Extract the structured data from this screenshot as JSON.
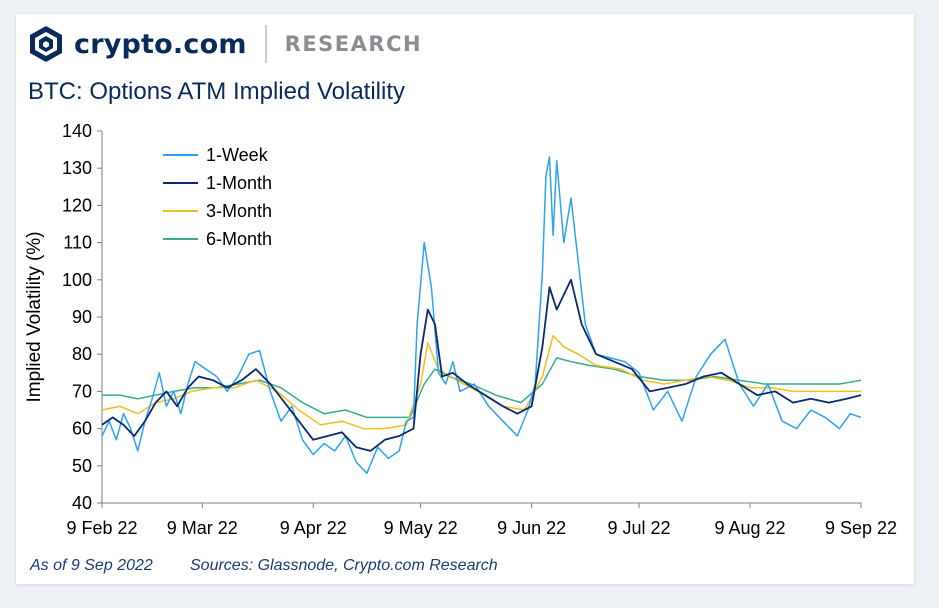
{
  "header": {
    "brand": "crypto.com",
    "section": "RESEARCH",
    "logo_icon": "crypto-com-lion-shield-icon"
  },
  "title": "BTC: Options ATM Implied Volatility",
  "footer": {
    "as_of": "As of 9 Sep 2022",
    "sources": "Sources: Glassnode, Crypto.com Research"
  },
  "colors": {
    "1-Week": "#2ea3f2",
    "1-Month": "#0b2a6e",
    "3-Month": "#f2c01d",
    "6-Month": "#3aab91"
  },
  "chart_data": {
    "type": "line",
    "title": "BTC: Options ATM Implied Volatility",
    "xlabel": "",
    "ylabel": "Implied Volatility (%)",
    "ylim": [
      40,
      140
    ],
    "yticks": [
      40,
      50,
      60,
      70,
      80,
      90,
      100,
      110,
      120,
      130,
      140
    ],
    "xticks": [
      "9 Feb 22",
      "9 Mar 22",
      "9 Apr 22",
      "9 May 22",
      "9 Jun 22",
      "9 Jul 22",
      "9 Aug 22",
      "9 Sep 22"
    ],
    "legend": "top-left",
    "grid": false,
    "x_start": "2022-02-09",
    "x_end": "2022-09-09",
    "series": [
      {
        "name": "1-Week",
        "points": [
          [
            "2022-02-09",
            58
          ],
          [
            "2022-02-11",
            62
          ],
          [
            "2022-02-13",
            57
          ],
          [
            "2022-02-15",
            64
          ],
          [
            "2022-02-17",
            60
          ],
          [
            "2022-02-19",
            54
          ],
          [
            "2022-02-21",
            62
          ],
          [
            "2022-02-23",
            68
          ],
          [
            "2022-02-25",
            75
          ],
          [
            "2022-02-27",
            66
          ],
          [
            "2022-03-01",
            70
          ],
          [
            "2022-03-03",
            64
          ],
          [
            "2022-03-05",
            72
          ],
          [
            "2022-03-07",
            78
          ],
          [
            "2022-03-10",
            76
          ],
          [
            "2022-03-13",
            74
          ],
          [
            "2022-03-16",
            70
          ],
          [
            "2022-03-19",
            74
          ],
          [
            "2022-03-22",
            80
          ],
          [
            "2022-03-25",
            81
          ],
          [
            "2022-03-28",
            70
          ],
          [
            "2022-03-31",
            62
          ],
          [
            "2022-04-03",
            66
          ],
          [
            "2022-04-06",
            57
          ],
          [
            "2022-04-09",
            53
          ],
          [
            "2022-04-12",
            56
          ],
          [
            "2022-04-15",
            54
          ],
          [
            "2022-04-18",
            58
          ],
          [
            "2022-04-21",
            51
          ],
          [
            "2022-04-24",
            48
          ],
          [
            "2022-04-27",
            55
          ],
          [
            "2022-04-30",
            52
          ],
          [
            "2022-05-03",
            54
          ],
          [
            "2022-05-05",
            62
          ],
          [
            "2022-05-07",
            63
          ],
          [
            "2022-05-08",
            88
          ],
          [
            "2022-05-10",
            110
          ],
          [
            "2022-05-12",
            98
          ],
          [
            "2022-05-14",
            75
          ],
          [
            "2022-05-16",
            72
          ],
          [
            "2022-05-18",
            78
          ],
          [
            "2022-05-20",
            70
          ],
          [
            "2022-05-24",
            72
          ],
          [
            "2022-05-28",
            66
          ],
          [
            "2022-06-01",
            62
          ],
          [
            "2022-06-05",
            58
          ],
          [
            "2022-06-08",
            65
          ],
          [
            "2022-06-10",
            72
          ],
          [
            "2022-06-12",
            102
          ],
          [
            "2022-06-13",
            128
          ],
          [
            "2022-06-14",
            133
          ],
          [
            "2022-06-15",
            112
          ],
          [
            "2022-06-16",
            132
          ],
          [
            "2022-06-18",
            110
          ],
          [
            "2022-06-20",
            122
          ],
          [
            "2022-06-22",
            105
          ],
          [
            "2022-06-24",
            88
          ],
          [
            "2022-06-27",
            80
          ],
          [
            "2022-07-01",
            79
          ],
          [
            "2022-07-05",
            78
          ],
          [
            "2022-07-09",
            75
          ],
          [
            "2022-07-13",
            65
          ],
          [
            "2022-07-17",
            70
          ],
          [
            "2022-07-21",
            62
          ],
          [
            "2022-07-25",
            74
          ],
          [
            "2022-07-29",
            80
          ],
          [
            "2022-08-02",
            84
          ],
          [
            "2022-08-06",
            72
          ],
          [
            "2022-08-10",
            66
          ],
          [
            "2022-08-14",
            72
          ],
          [
            "2022-08-18",
            62
          ],
          [
            "2022-08-22",
            60
          ],
          [
            "2022-08-26",
            65
          ],
          [
            "2022-08-30",
            63
          ],
          [
            "2022-09-03",
            60
          ],
          [
            "2022-09-06",
            64
          ],
          [
            "2022-09-09",
            63
          ]
        ]
      },
      {
        "name": "1-Month",
        "points": [
          [
            "2022-02-09",
            61
          ],
          [
            "2022-02-12",
            63
          ],
          [
            "2022-02-15",
            61
          ],
          [
            "2022-02-18",
            58
          ],
          [
            "2022-02-21",
            62
          ],
          [
            "2022-02-24",
            67
          ],
          [
            "2022-02-27",
            70
          ],
          [
            "2022-03-02",
            66
          ],
          [
            "2022-03-05",
            71
          ],
          [
            "2022-03-08",
            74
          ],
          [
            "2022-03-12",
            73
          ],
          [
            "2022-03-16",
            71
          ],
          [
            "2022-03-20",
            73
          ],
          [
            "2022-03-24",
            76
          ],
          [
            "2022-03-28",
            72
          ],
          [
            "2022-04-01",
            67
          ],
          [
            "2022-04-05",
            62
          ],
          [
            "2022-04-09",
            57
          ],
          [
            "2022-04-13",
            58
          ],
          [
            "2022-04-17",
            59
          ],
          [
            "2022-04-21",
            55
          ],
          [
            "2022-04-25",
            54
          ],
          [
            "2022-04-29",
            57
          ],
          [
            "2022-05-03",
            58
          ],
          [
            "2022-05-07",
            60
          ],
          [
            "2022-05-09",
            80
          ],
          [
            "2022-05-11",
            92
          ],
          [
            "2022-05-13",
            88
          ],
          [
            "2022-05-15",
            74
          ],
          [
            "2022-05-18",
            75
          ],
          [
            "2022-05-22",
            72
          ],
          [
            "2022-05-27",
            69
          ],
          [
            "2022-06-01",
            66
          ],
          [
            "2022-06-05",
            64
          ],
          [
            "2022-06-09",
            66
          ],
          [
            "2022-06-12",
            82
          ],
          [
            "2022-06-14",
            98
          ],
          [
            "2022-06-16",
            92
          ],
          [
            "2022-06-18",
            96
          ],
          [
            "2022-06-20",
            100
          ],
          [
            "2022-06-23",
            88
          ],
          [
            "2022-06-27",
            80
          ],
          [
            "2022-07-02",
            78
          ],
          [
            "2022-07-07",
            76
          ],
          [
            "2022-07-12",
            70
          ],
          [
            "2022-07-17",
            71
          ],
          [
            "2022-07-22",
            72
          ],
          [
            "2022-07-27",
            74
          ],
          [
            "2022-08-01",
            75
          ],
          [
            "2022-08-06",
            72
          ],
          [
            "2022-08-11",
            69
          ],
          [
            "2022-08-16",
            70
          ],
          [
            "2022-08-21",
            67
          ],
          [
            "2022-08-26",
            68
          ],
          [
            "2022-08-31",
            67
          ],
          [
            "2022-09-05",
            68
          ],
          [
            "2022-09-09",
            69
          ]
        ]
      },
      {
        "name": "3-Month",
        "points": [
          [
            "2022-02-09",
            65
          ],
          [
            "2022-02-14",
            66
          ],
          [
            "2022-02-19",
            64
          ],
          [
            "2022-02-24",
            67
          ],
          [
            "2022-03-01",
            68
          ],
          [
            "2022-03-06",
            70
          ],
          [
            "2022-03-12",
            71
          ],
          [
            "2022-03-18",
            71
          ],
          [
            "2022-03-24",
            73
          ],
          [
            "2022-03-30",
            70
          ],
          [
            "2022-04-05",
            65
          ],
          [
            "2022-04-11",
            61
          ],
          [
            "2022-04-17",
            62
          ],
          [
            "2022-04-23",
            60
          ],
          [
            "2022-04-29",
            60
          ],
          [
            "2022-05-05",
            61
          ],
          [
            "2022-05-09",
            72
          ],
          [
            "2022-05-11",
            83
          ],
          [
            "2022-05-14",
            76
          ],
          [
            "2022-05-19",
            73
          ],
          [
            "2022-05-25",
            70
          ],
          [
            "2022-06-01",
            66
          ],
          [
            "2022-06-07",
            65
          ],
          [
            "2022-06-12",
            74
          ],
          [
            "2022-06-15",
            85
          ],
          [
            "2022-06-18",
            82
          ],
          [
            "2022-06-22",
            80
          ],
          [
            "2022-06-27",
            77
          ],
          [
            "2022-07-04",
            76
          ],
          [
            "2022-07-10",
            73
          ],
          [
            "2022-07-16",
            72
          ],
          [
            "2022-07-22",
            73
          ],
          [
            "2022-07-28",
            74
          ],
          [
            "2022-08-03",
            73
          ],
          [
            "2022-08-09",
            71
          ],
          [
            "2022-08-15",
            71
          ],
          [
            "2022-08-21",
            70
          ],
          [
            "2022-08-27",
            70
          ],
          [
            "2022-09-02",
            70
          ],
          [
            "2022-09-09",
            70
          ]
        ]
      },
      {
        "name": "6-Month",
        "points": [
          [
            "2022-02-09",
            69
          ],
          [
            "2022-02-14",
            69
          ],
          [
            "2022-02-19",
            68
          ],
          [
            "2022-02-24",
            69
          ],
          [
            "2022-03-01",
            70
          ],
          [
            "2022-03-07",
            71
          ],
          [
            "2022-03-13",
            71
          ],
          [
            "2022-03-19",
            72
          ],
          [
            "2022-03-25",
            73
          ],
          [
            "2022-03-31",
            71
          ],
          [
            "2022-04-06",
            67
          ],
          [
            "2022-04-12",
            64
          ],
          [
            "2022-04-18",
            65
          ],
          [
            "2022-04-24",
            63
          ],
          [
            "2022-04-30",
            63
          ],
          [
            "2022-05-06",
            63
          ],
          [
            "2022-05-10",
            72
          ],
          [
            "2022-05-13",
            76
          ],
          [
            "2022-05-17",
            74
          ],
          [
            "2022-05-23",
            72
          ],
          [
            "2022-05-30",
            69
          ],
          [
            "2022-06-06",
            67
          ],
          [
            "2022-06-12",
            72
          ],
          [
            "2022-06-16",
            79
          ],
          [
            "2022-06-20",
            78
          ],
          [
            "2022-06-25",
            77
          ],
          [
            "2022-07-02",
            76
          ],
          [
            "2022-07-09",
            74
          ],
          [
            "2022-07-16",
            73
          ],
          [
            "2022-07-23",
            73
          ],
          [
            "2022-07-30",
            74
          ],
          [
            "2022-08-06",
            73
          ],
          [
            "2022-08-13",
            72
          ],
          [
            "2022-08-20",
            72
          ],
          [
            "2022-08-27",
            72
          ],
          [
            "2022-09-03",
            72
          ],
          [
            "2022-09-09",
            73
          ]
        ]
      }
    ]
  }
}
